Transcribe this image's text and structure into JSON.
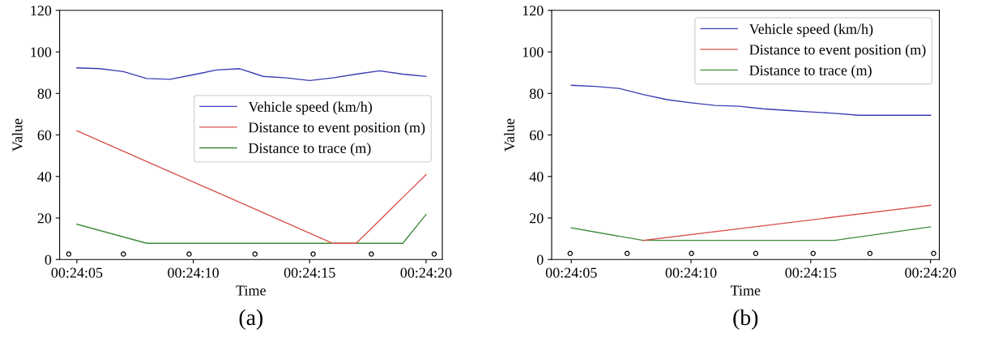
{
  "chart_data": [
    {
      "type": "line",
      "xlabel": "Time",
      "ylabel": "Value",
      "annotations": [
        "(a)"
      ],
      "xlim": [
        0.401183,
        0.40575
      ],
      "ylim": [
        0,
        120
      ],
      "yticks": [
        0,
        20,
        40,
        60,
        80,
        100,
        120
      ],
      "xticks": [
        {
          "value": 0.4013889,
          "label": "00:24:05"
        },
        {
          "value": 0.4027778,
          "label": "00:24:10"
        },
        {
          "value": 0.4041667,
          "label": "00:24:15"
        },
        {
          "value": 0.4055556,
          "label": "00:24:20"
        }
      ],
      "grid": false,
      "legend": "right",
      "marker": "none",
      "line_style": "solid",
      "series": [
        {
          "name": "Vehicle speed (km/h)",
          "color": "#3c3cb4",
          "x": [
            0.401389,
            0.401667,
            0.401944,
            0.402222,
            0.4025,
            0.402778,
            0.403056,
            0.403333,
            0.403611,
            0.403889,
            0.404167,
            0.404444,
            0.404722,
            0.405,
            0.405278,
            0.405556
          ],
          "values": [
            92.3,
            91.9,
            90.5,
            87.2,
            86.8,
            89,
            91.3,
            91.9,
            88.2,
            87.5,
            86.2,
            87.5,
            89.3,
            90.9,
            89.3,
            88.2
          ]
        },
        {
          "name": "Distance to event position (m)",
          "color": "#d9534f",
          "x": [
            0.401389,
            0.404444,
            0.404722,
            0.405556
          ],
          "values": [
            62,
            7.8,
            7.8,
            40.9
          ]
        },
        {
          "name": "Distance to trace (m)",
          "color": "#3d8b3d",
          "x": [
            0.401389,
            0.402222,
            0.405278,
            0.405556
          ],
          "values": [
            17,
            7.8,
            7.8,
            21.7
          ]
        },
        {
          "type": "scatter",
          "marker": "circle",
          "color": "#000000",
          "x": [
            0.401292,
            0.401944,
            0.402728,
            0.403514,
            0.404208,
            0.404903,
            0.405653
          ],
          "values": [
            2.6,
            2.6,
            2.6,
            2.6,
            2.6,
            2.6,
            2.6
          ]
        }
      ]
    },
    {
      "type": "line",
      "xlabel": "Time",
      "ylabel": "Value",
      "annotations": [
        "(b)"
      ],
      "xlim": [
        0.401161,
        0.405658
      ],
      "ylim": [
        0,
        120
      ],
      "yticks": [
        0,
        20,
        40,
        60,
        80,
        100,
        120
      ],
      "xticks": [
        {
          "value": 0.4013889,
          "label": "00:24:05"
        },
        {
          "value": 0.4027778,
          "label": "00:24:10"
        },
        {
          "value": 0.4041667,
          "label": "00:24:15"
        },
        {
          "value": 0.4055556,
          "label": "00:24:20"
        }
      ],
      "grid": false,
      "legend": "upper right",
      "marker": "none",
      "line_style": "solid",
      "series": [
        {
          "name": "Vehicle speed (km/h)",
          "color": "#3c3cb4",
          "x": [
            0.401389,
            0.401667,
            0.401944,
            0.402222,
            0.4025,
            0.402778,
            0.403056,
            0.403333,
            0.403611,
            0.403889,
            0.404167,
            0.404444,
            0.404722,
            0.405,
            0.405278,
            0.405556
          ],
          "values": [
            83.9,
            83.4,
            82.4,
            79.5,
            77,
            75.5,
            74.2,
            73.8,
            72.6,
            71.8,
            71.1,
            70.4,
            69.5,
            69.5,
            69.5,
            69.5
          ]
        },
        {
          "name": "Distance to event position (m)",
          "color": "#d9534f",
          "x": [
            0.402222,
            0.405556
          ],
          "values": [
            9.2,
            26.1
          ]
        },
        {
          "name": "Distance to trace (m)",
          "color": "#3d8b3d",
          "x": [
            0.401389,
            0.402222,
            0.404444,
            0.405556
          ],
          "values": [
            15.2,
            9.2,
            9.2,
            15.7
          ]
        },
        {
          "type": "scatter",
          "marker": "circle",
          "color": "#000000",
          "x": [
            0.401375,
            0.402036,
            0.402783,
            0.403528,
            0.404194,
            0.404853,
            0.405592
          ],
          "values": [
            2.9,
            2.9,
            2.9,
            2.9,
            2.9,
            2.9,
            2.9
          ]
        }
      ]
    }
  ]
}
